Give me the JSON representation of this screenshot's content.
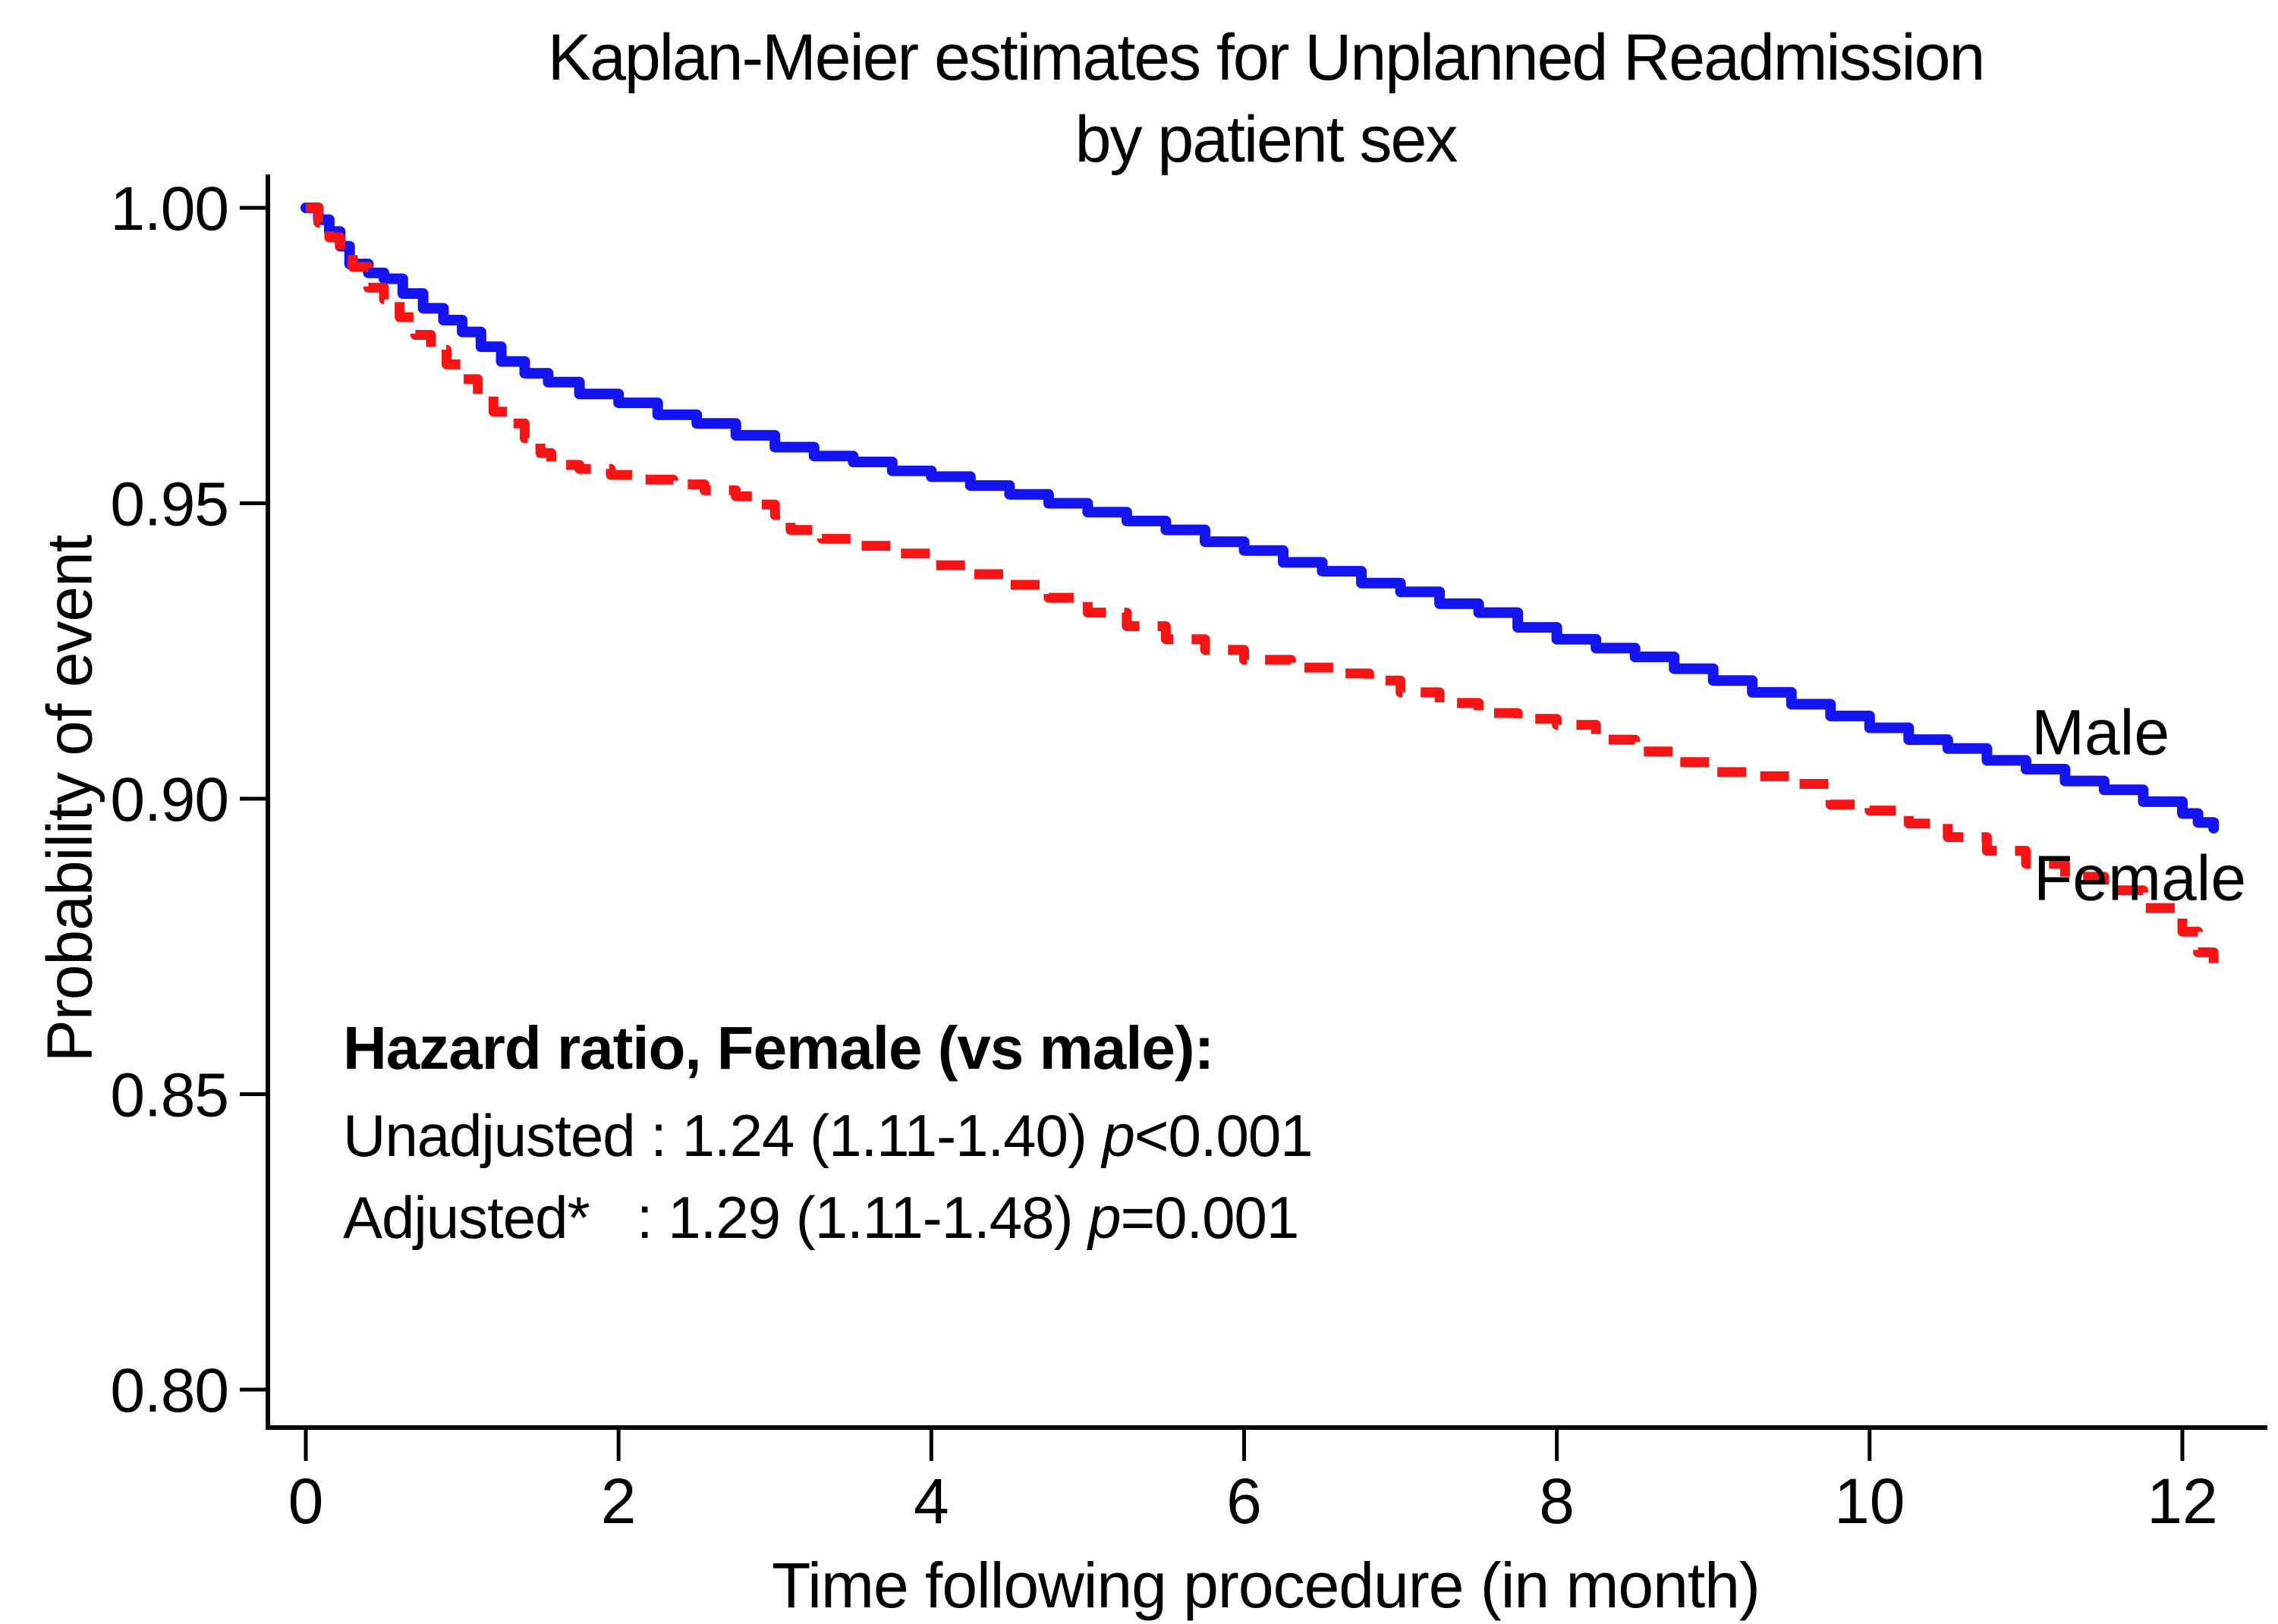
{
  "chart_data": {
    "type": "line",
    "title": "Kaplan-Meier estimates for Unplanned Readmission",
    "subtitle": "by patient sex",
    "xlabel": "Time following procedure (in month)",
    "ylabel": "Probability of event",
    "xlim": [
      0,
      12.4
    ],
    "ylim": [
      0.795,
      1.005
    ],
    "x_ticks": [
      0,
      2,
      4,
      6,
      8,
      10,
      12
    ],
    "y_ticks": [
      1.0,
      0.95,
      0.9,
      0.85,
      0.8
    ],
    "grid": false,
    "legend_position": "labels-at-line-ends",
    "series": [
      {
        "name": "Male",
        "style": "solid",
        "color": "#1414f0",
        "points": [
          [
            0,
            1.0
          ],
          [
            0.08,
            0.998
          ],
          [
            0.15,
            0.996
          ],
          [
            0.22,
            0.9935
          ],
          [
            0.28,
            0.9905
          ],
          [
            0.4,
            0.989
          ],
          [
            0.5,
            0.988
          ],
          [
            0.62,
            0.9855
          ],
          [
            0.75,
            0.983
          ],
          [
            0.88,
            0.981
          ],
          [
            1.0,
            0.979
          ],
          [
            1.12,
            0.9765
          ],
          [
            1.25,
            0.974
          ],
          [
            1.4,
            0.972
          ],
          [
            1.55,
            0.9705
          ],
          [
            1.75,
            0.9685
          ],
          [
            2.0,
            0.967
          ],
          [
            2.25,
            0.965
          ],
          [
            2.5,
            0.9635
          ],
          [
            2.75,
            0.9615
          ],
          [
            3.0,
            0.9595
          ],
          [
            3.25,
            0.958
          ],
          [
            3.5,
            0.957
          ],
          [
            3.75,
            0.9555
          ],
          [
            4.0,
            0.9545
          ],
          [
            4.25,
            0.953
          ],
          [
            4.5,
            0.9515
          ],
          [
            4.75,
            0.95
          ],
          [
            5.0,
            0.9485
          ],
          [
            5.25,
            0.947
          ],
          [
            5.5,
            0.9455
          ],
          [
            5.75,
            0.9435
          ],
          [
            6.0,
            0.942
          ],
          [
            6.25,
            0.94
          ],
          [
            6.5,
            0.9385
          ],
          [
            6.75,
            0.9365
          ],
          [
            7.0,
            0.935
          ],
          [
            7.25,
            0.933
          ],
          [
            7.5,
            0.9315
          ],
          [
            7.75,
            0.929
          ],
          [
            8.0,
            0.927
          ],
          [
            8.25,
            0.9255
          ],
          [
            8.5,
            0.924
          ],
          [
            8.75,
            0.922
          ],
          [
            9.0,
            0.92
          ],
          [
            9.25,
            0.918
          ],
          [
            9.5,
            0.916
          ],
          [
            9.75,
            0.914
          ],
          [
            10.0,
            0.912
          ],
          [
            10.25,
            0.91
          ],
          [
            10.5,
            0.9085
          ],
          [
            10.75,
            0.9065
          ],
          [
            11.0,
            0.905
          ],
          [
            11.25,
            0.903
          ],
          [
            11.5,
            0.9015
          ],
          [
            11.75,
            0.8995
          ],
          [
            12.0,
            0.8975
          ],
          [
            12.1,
            0.896
          ],
          [
            12.2,
            0.895
          ]
        ]
      },
      {
        "name": "Female",
        "style": "dashed",
        "color": "#f81414",
        "points": [
          [
            0,
            1.0
          ],
          [
            0.08,
            0.9975
          ],
          [
            0.15,
            0.995
          ],
          [
            0.22,
            0.9925
          ],
          [
            0.3,
            0.99
          ],
          [
            0.4,
            0.9865
          ],
          [
            0.5,
            0.9845
          ],
          [
            0.6,
            0.9815
          ],
          [
            0.7,
            0.9785
          ],
          [
            0.8,
            0.976
          ],
          [
            0.9,
            0.9735
          ],
          [
            1.0,
            0.971
          ],
          [
            1.1,
            0.9685
          ],
          [
            1.2,
            0.9655
          ],
          [
            1.3,
            0.9635
          ],
          [
            1.4,
            0.961
          ],
          [
            1.5,
            0.9585
          ],
          [
            1.57,
            0.9565
          ],
          [
            1.75,
            0.9558
          ],
          [
            1.95,
            0.9548
          ],
          [
            2.15,
            0.954
          ],
          [
            2.35,
            0.9532
          ],
          [
            2.55,
            0.9522
          ],
          [
            2.75,
            0.9512
          ],
          [
            2.9,
            0.9498
          ],
          [
            3.0,
            0.948
          ],
          [
            3.1,
            0.9455
          ],
          [
            3.3,
            0.944
          ],
          [
            3.5,
            0.9428
          ],
          [
            3.75,
            0.9415
          ],
          [
            4.0,
            0.9395
          ],
          [
            4.25,
            0.938
          ],
          [
            4.5,
            0.9362
          ],
          [
            4.75,
            0.934
          ],
          [
            5.0,
            0.9315
          ],
          [
            5.25,
            0.9292
          ],
          [
            5.5,
            0.927
          ],
          [
            5.75,
            0.9252
          ],
          [
            6.0,
            0.9235
          ],
          [
            6.3,
            0.9222
          ],
          [
            6.6,
            0.9212
          ],
          [
            6.8,
            0.92
          ],
          [
            7.0,
            0.918
          ],
          [
            7.25,
            0.9162
          ],
          [
            7.5,
            0.9145
          ],
          [
            7.75,
            0.9135
          ],
          [
            8.0,
            0.9125
          ],
          [
            8.25,
            0.91
          ],
          [
            8.5,
            0.908
          ],
          [
            8.75,
            0.9062
          ],
          [
            9.0,
            0.9045
          ],
          [
            9.25,
            0.9038
          ],
          [
            9.5,
            0.9025
          ],
          [
            9.75,
            0.899
          ],
          [
            10.0,
            0.898
          ],
          [
            10.25,
            0.8958
          ],
          [
            10.5,
            0.8935
          ],
          [
            10.75,
            0.8912
          ],
          [
            11.0,
            0.889
          ],
          [
            11.25,
            0.8868
          ],
          [
            11.5,
            0.8845
          ],
          [
            11.75,
            0.8815
          ],
          [
            12.0,
            0.8775
          ],
          [
            12.1,
            0.874
          ],
          [
            12.2,
            0.871
          ]
        ]
      }
    ],
    "annotation": {
      "header": "Hazard ratio, Female (vs male):",
      "lines": [
        {
          "pre": "Unadjusted : 1.24 (1.11-1.40) ",
          "pvar": "p",
          "post": "<0.001"
        },
        {
          "pre": "Adjusted*   : 1.29 (1.11-1.48) ",
          "pvar": "p",
          "post": "=0.001"
        }
      ]
    }
  }
}
